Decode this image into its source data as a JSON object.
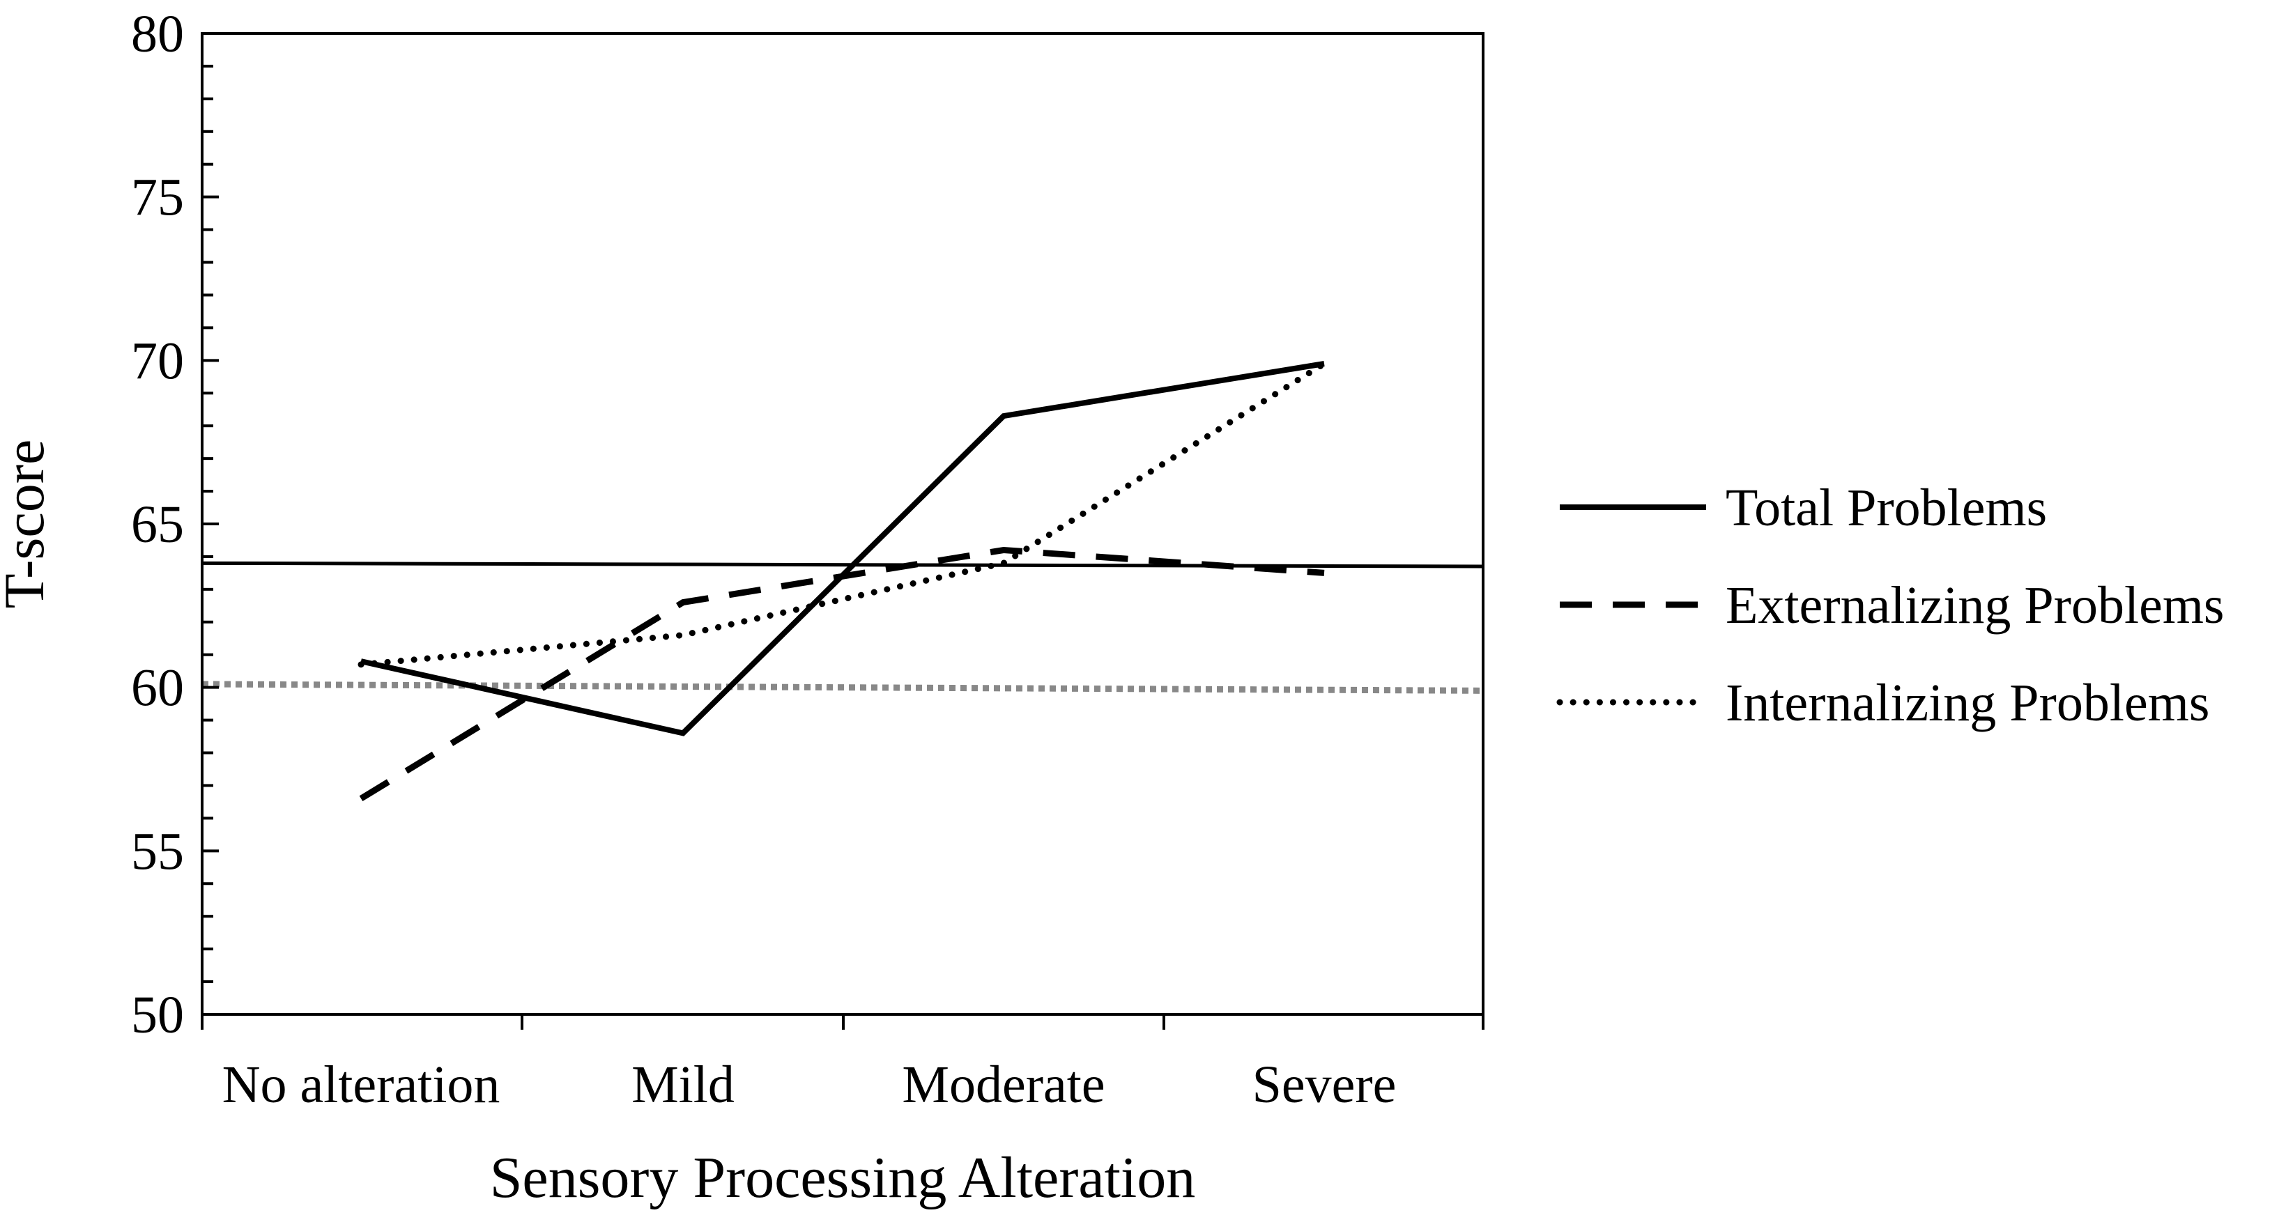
{
  "chart_data": {
    "type": "line",
    "title": "",
    "xlabel": "Sensory Processing Alteration",
    "ylabel": "T-score",
    "categories": [
      "No alteration",
      "Mild",
      "Moderate",
      "Severe"
    ],
    "ylim": [
      50,
      80
    ],
    "y_ticks": [
      50,
      55,
      60,
      65,
      70,
      75,
      80
    ],
    "y_tick_labels": [
      "50",
      "55",
      "60",
      "65",
      "70",
      "75",
      "80"
    ],
    "y_minor_step": 1,
    "grid": false,
    "legend_position": "right",
    "series": [
      {
        "name": "Total Problems",
        "style": "solid",
        "values": [
          60.8,
          58.6,
          68.3,
          69.9
        ]
      },
      {
        "name": "Externalizing Problems",
        "style": "dashed",
        "values": [
          56.6,
          62.6,
          64.2,
          63.5
        ]
      },
      {
        "name": "Internalizing Problems",
        "style": "dotted",
        "values": [
          60.7,
          61.6,
          63.8,
          69.9
        ]
      }
    ],
    "reference_lines": [
      {
        "name": "clinical-threshold",
        "style": "solid",
        "color": "#000000",
        "y_start": 63.8,
        "y_end": 63.7
      },
      {
        "name": "borderline-threshold",
        "style": "dotted",
        "color": "#888888",
        "y_start": 60.1,
        "y_end": 59.9
      }
    ]
  }
}
